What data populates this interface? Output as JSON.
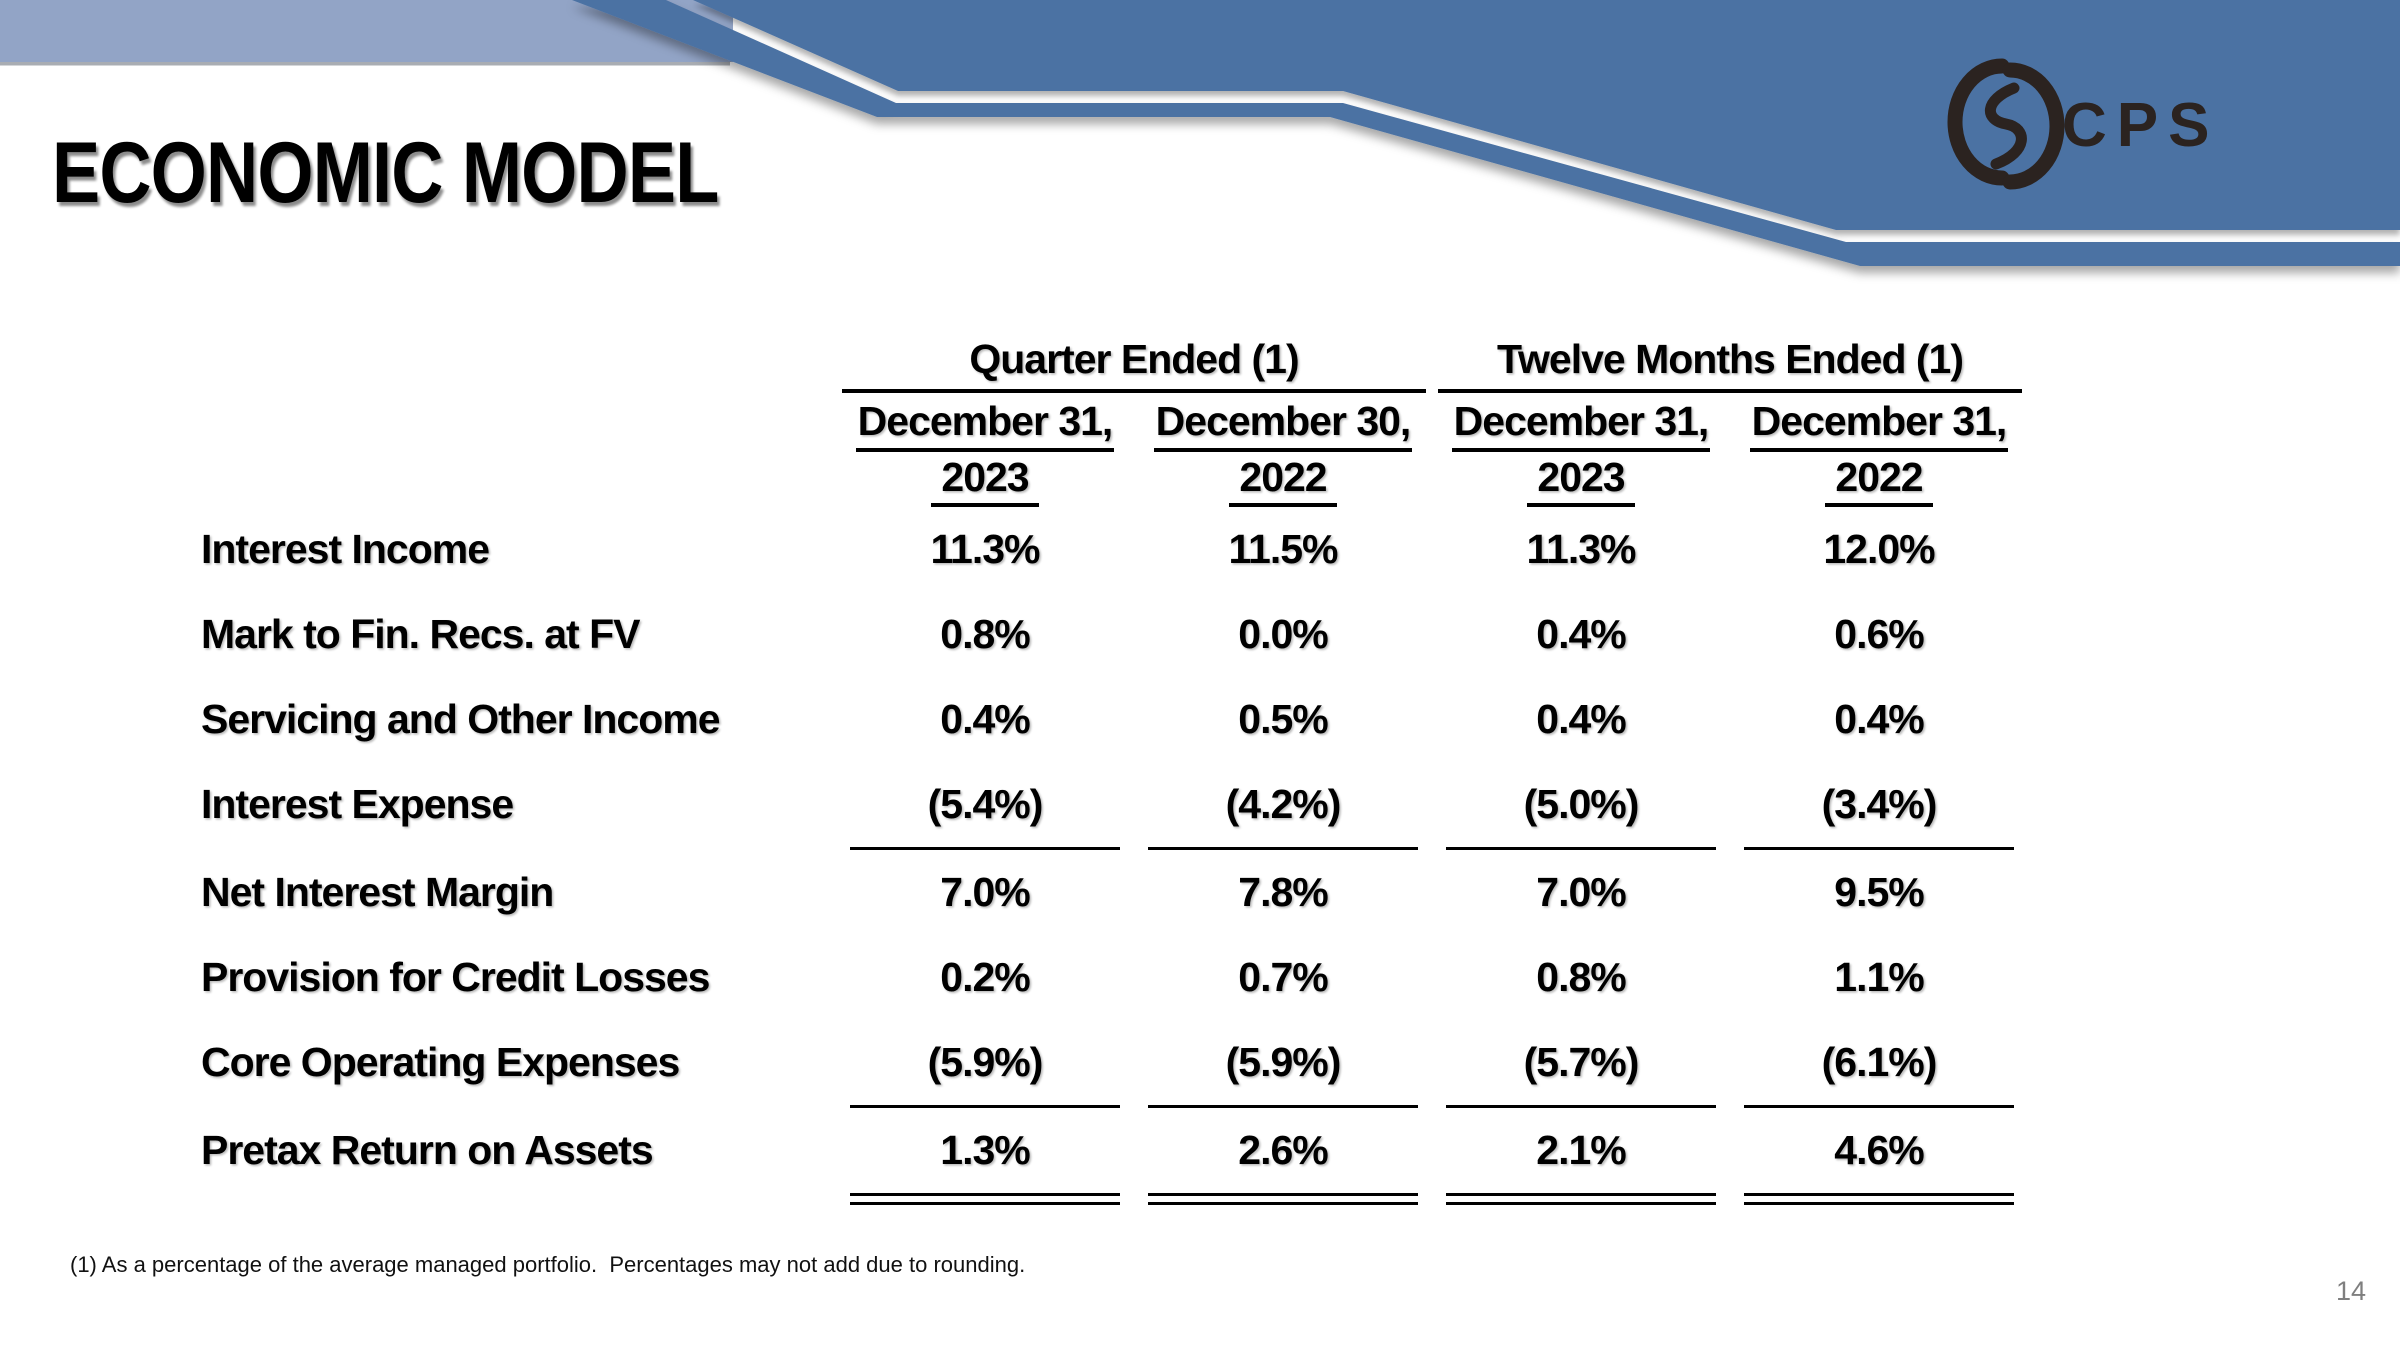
{
  "slide": {
    "title": "ECONOMIC MODEL",
    "footnote": "(1) As a percentage of the average managed portfolio.  Percentages may not add due to rounding.",
    "page_number": "14",
    "logo_text": "CPS"
  },
  "colors": {
    "dark_blue": "#4b72a3",
    "light_blue": "#92a4c6",
    "band_shadow_gray": "#a9adb3",
    "logo_dark": "#2b2320",
    "page_number_gray": "#7f7f7f",
    "text_black": "#000000"
  },
  "table": {
    "group_headers": [
      {
        "label": "Quarter Ended (1)"
      },
      {
        "label": "Twelve Months Ended (1)"
      }
    ],
    "columns": [
      {
        "date": "December 31,",
        "year": "2023"
      },
      {
        "date": "December 30,",
        "year": "2022"
      },
      {
        "date": "December 31,",
        "year": "2023"
      },
      {
        "date": "December 31,",
        "year": "2022"
      }
    ],
    "rows": [
      {
        "label": "Interest Income",
        "values": [
          "11.3%",
          "11.5%",
          "11.3%",
          "12.0%"
        ],
        "rule_below": "none"
      },
      {
        "label": "Mark to Fin. Recs. at FV",
        "values": [
          "0.8%",
          "0.0%",
          "0.4%",
          "0.6%"
        ],
        "rule_below": "none"
      },
      {
        "label": "Servicing and Other Income",
        "values": [
          "0.4%",
          "0.5%",
          "0.4%",
          "0.4%"
        ],
        "rule_below": "none"
      },
      {
        "label": "Interest Expense",
        "values": [
          "(5.4%)",
          "(4.2%)",
          "(5.0%)",
          "(3.4%)"
        ],
        "rule_below": "single"
      },
      {
        "label": "Net Interest Margin",
        "values": [
          "7.0%",
          "7.8%",
          "7.0%",
          "9.5%"
        ],
        "rule_below": "none"
      },
      {
        "label": "Provision for Credit Losses",
        "values": [
          "0.2%",
          "0.7%",
          "0.8%",
          "1.1%"
        ],
        "rule_below": "none"
      },
      {
        "label": "Core Operating Expenses",
        "values": [
          "(5.9%)",
          "(5.9%)",
          "(5.7%)",
          "(6.1%)"
        ],
        "rule_below": "single"
      },
      {
        "label": "Pretax Return on Assets",
        "values": [
          "1.3%",
          "2.6%",
          "2.1%",
          "4.6%"
        ],
        "rule_below": "double"
      }
    ]
  }
}
